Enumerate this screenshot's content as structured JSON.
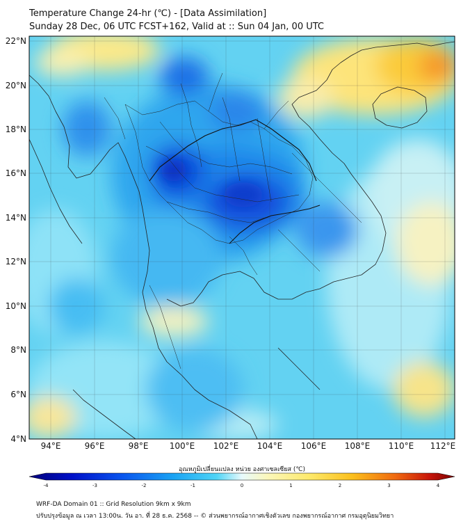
{
  "title_line1": "Temperature Change 24-hr (℃) - [Data Assimilation]",
  "title_line2": "Sunday 28 Dec, 06 UTC FCST+162, Valid at :: Sun 04 Jan, 00 UTC",
  "lat_labels": [
    "22°N",
    "20°N",
    "18°N",
    "16°N",
    "14°N",
    "12°N",
    "10°N",
    "8°N",
    "6°N",
    "4°N"
  ],
  "lon_labels": [
    "94°E",
    "96°E",
    "98°E",
    "100°E",
    "102°E",
    "104°E",
    "106°E",
    "108°E",
    "110°E",
    "112°E"
  ],
  "colorbar": {
    "title": "อุณหภูมิเปลี่ยนแปลง หน่วย องศาเซลเซียส (℃)",
    "ticks": [
      "-4",
      "-3",
      "-2",
      "-1",
      "0",
      "1",
      "2",
      "3",
      "4"
    ],
    "min": -4,
    "max": 4
  },
  "footer_line1": "WRF-DA Domain 01 :: Grid Resolution 9km x 9km",
  "footer_line2": "ปรับปรุงข้อมูล ณ เวลา 13:00น. วัน อา. ที่ 28 ธ.ค. 2568 -- © ส่วนพยากรณ์อากาศเชิงตัวเลข กองพยากรณ์อากาศ กรมอุตุนิยมวิทยา"
}
